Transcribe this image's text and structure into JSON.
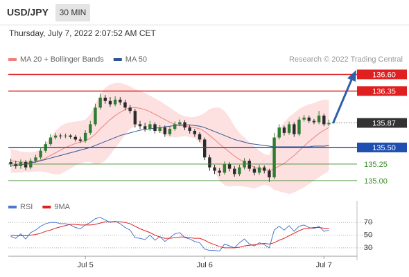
{
  "chart_data": [
    {
      "type": "candlestick",
      "title": "USD/JPY",
      "timeframe": "30 MIN",
      "subtitle": "Thursday, July 7, 2022 2:07:52 AM CET",
      "source": "Research © 2022 Trading Central",
      "categories": [
        null,
        null,
        null,
        null,
        null,
        null,
        null,
        null,
        null,
        null,
        null,
        null,
        null,
        null,
        null,
        "Jul 5",
        null,
        null,
        null,
        null,
        null,
        null,
        null,
        null,
        null,
        null,
        null,
        null,
        null,
        null,
        null,
        null,
        null,
        null,
        null,
        null,
        null,
        null,
        null,
        "Jul 6",
        null,
        null,
        null,
        null,
        null,
        null,
        null,
        null,
        null,
        null,
        null,
        null,
        null,
        null,
        null,
        null,
        null,
        null,
        null,
        null,
        null,
        null,
        null,
        "Jul 7",
        null
      ],
      "open": [
        135.28,
        135.25,
        135.22,
        135.28,
        135.2,
        135.3,
        135.35,
        135.45,
        135.55,
        135.65,
        135.68,
        135.67,
        135.68,
        135.66,
        135.62,
        135.6,
        135.72,
        135.85,
        136.1,
        136.25,
        136.2,
        136.15,
        136.22,
        136.18,
        136.1,
        136.05,
        135.85,
        135.82,
        135.78,
        135.85,
        135.75,
        135.8,
        135.7,
        135.78,
        135.85,
        135.88,
        135.8,
        135.75,
        135.7,
        135.62,
        135.35,
        135.2,
        135.15,
        135.12,
        135.25,
        135.18,
        135.1,
        135.2,
        135.3,
        135.18,
        135.12,
        135.2,
        135.15,
        135.05,
        135.65,
        135.8,
        135.72,
        135.85,
        135.7,
        135.92,
        135.95,
        135.9,
        135.88,
        135.98,
        135.85
      ],
      "high": [
        135.33,
        135.3,
        135.32,
        135.31,
        135.34,
        135.39,
        135.49,
        135.59,
        135.7,
        135.72,
        135.71,
        135.71,
        135.7,
        135.69,
        135.66,
        135.76,
        135.9,
        136.16,
        136.31,
        136.29,
        136.26,
        136.27,
        136.26,
        136.22,
        136.14,
        136.08,
        135.9,
        135.87,
        135.9,
        135.88,
        135.84,
        135.83,
        135.82,
        135.89,
        135.92,
        135.91,
        135.84,
        135.78,
        135.73,
        135.65,
        135.39,
        135.24,
        135.19,
        135.29,
        135.28,
        135.22,
        135.24,
        135.34,
        135.33,
        135.22,
        135.24,
        135.23,
        135.18,
        135.72,
        135.85,
        135.83,
        135.89,
        135.88,
        135.96,
        135.99,
        135.98,
        135.93,
        136.05,
        136.01,
        135.92
      ],
      "low": [
        135.21,
        135.18,
        135.18,
        135.16,
        135.17,
        135.27,
        135.32,
        135.42,
        135.52,
        135.62,
        135.63,
        135.64,
        135.63,
        135.59,
        135.57,
        135.57,
        135.69,
        135.82,
        136.07,
        136.16,
        136.11,
        136.12,
        136.14,
        136.06,
        136.01,
        135.8,
        135.78,
        135.74,
        135.75,
        135.71,
        135.72,
        135.66,
        135.67,
        135.75,
        135.82,
        135.76,
        135.71,
        135.66,
        135.58,
        135.31,
        135.15,
        135.1,
        135.07,
        135.09,
        135.14,
        135.06,
        135.07,
        135.17,
        135.14,
        135.08,
        135.09,
        135.11,
        134.98,
        135.02,
        135.62,
        135.68,
        135.69,
        135.66,
        135.67,
        135.89,
        135.87,
        135.85,
        135.85,
        135.82,
        135.82
      ],
      "close": [
        135.25,
        135.22,
        135.28,
        135.2,
        135.3,
        135.35,
        135.45,
        135.55,
        135.65,
        135.68,
        135.67,
        135.68,
        135.66,
        135.62,
        135.6,
        135.72,
        135.85,
        136.1,
        136.25,
        136.2,
        136.15,
        136.22,
        136.18,
        136.1,
        136.05,
        135.85,
        135.82,
        135.78,
        135.85,
        135.75,
        135.8,
        135.7,
        135.78,
        135.85,
        135.88,
        135.8,
        135.75,
        135.7,
        135.62,
        135.35,
        135.2,
        135.15,
        135.12,
        135.25,
        135.18,
        135.1,
        135.2,
        135.3,
        135.18,
        135.12,
        135.2,
        135.15,
        135.05,
        135.65,
        135.8,
        135.72,
        135.85,
        135.7,
        135.92,
        135.95,
        135.9,
        135.88,
        135.98,
        135.85,
        135.87
      ],
      "up_color": "#2e7d32",
      "down_color": "#2b2b2b",
      "series": [
        {
          "name": "MA 20 + Bollinger Bands",
          "color": "#f08080",
          "band_color": "#fde0e0",
          "values": [
            135.3,
            135.29,
            135.28,
            135.28,
            135.28,
            135.29,
            135.31,
            135.34,
            135.38,
            135.42,
            135.46,
            135.5,
            135.53,
            135.56,
            135.58,
            135.6,
            135.64,
            135.7,
            135.78,
            135.85,
            135.92,
            135.98,
            136.03,
            136.07,
            136.1,
            136.1,
            136.09,
            136.07,
            136.04,
            136.0,
            135.96,
            135.92,
            135.88,
            135.85,
            135.83,
            135.82,
            135.81,
            135.8,
            135.78,
            135.74,
            135.68,
            135.62,
            135.55,
            135.49,
            135.43,
            135.37,
            135.32,
            135.28,
            135.24,
            135.2,
            135.18,
            135.17,
            135.15,
            135.18,
            135.22,
            135.26,
            135.32,
            135.38,
            135.45,
            135.52,
            135.59,
            135.65,
            135.71,
            135.76,
            135.8
          ],
          "upper": [
            135.48,
            135.46,
            135.44,
            135.43,
            135.43,
            135.44,
            135.48,
            135.55,
            135.65,
            135.75,
            135.82,
            135.86,
            135.88,
            135.89,
            135.9,
            135.92,
            136.0,
            136.15,
            136.3,
            136.4,
            136.45,
            136.47,
            136.47,
            136.45,
            136.42,
            136.38,
            136.35,
            136.32,
            136.28,
            136.24,
            136.2,
            136.15,
            136.1,
            136.05,
            136.0,
            135.97,
            135.96,
            135.96,
            135.98,
            136.02,
            136.08,
            136.1,
            136.1,
            136.05,
            135.95,
            135.82,
            135.72,
            135.65,
            135.58,
            135.52,
            135.45,
            135.4,
            135.38,
            135.6,
            135.78,
            135.88,
            135.96,
            136.02,
            136.08,
            136.12,
            136.15,
            136.17,
            136.2,
            136.22,
            136.22
          ],
          "lower": [
            135.12,
            135.12,
            135.12,
            135.13,
            135.13,
            135.14,
            135.14,
            135.13,
            135.11,
            135.09,
            135.1,
            135.14,
            135.18,
            135.23,
            135.26,
            135.28,
            135.28,
            135.25,
            135.26,
            135.3,
            135.39,
            135.49,
            135.59,
            135.69,
            135.78,
            135.82,
            135.83,
            135.82,
            135.8,
            135.76,
            135.72,
            135.69,
            135.66,
            135.65,
            135.66,
            135.67,
            135.66,
            135.64,
            135.58,
            135.46,
            135.28,
            135.14,
            135.0,
            134.93,
            134.91,
            134.92,
            134.92,
            134.91,
            134.9,
            134.88,
            134.91,
            134.94,
            134.92,
            134.86,
            134.84,
            134.82,
            134.8,
            134.82,
            134.86,
            134.9,
            134.95,
            135.0,
            135.05,
            135.1,
            135.15
          ]
        },
        {
          "name": "MA 50",
          "color": "#2f5597",
          "values": [
            135.22,
            135.23,
            135.24,
            135.25,
            135.27,
            135.28,
            135.3,
            135.32,
            135.34,
            135.36,
            135.38,
            135.4,
            135.42,
            135.44,
            135.46,
            135.48,
            135.5,
            135.53,
            135.56,
            135.59,
            135.62,
            135.65,
            135.68,
            135.7,
            135.72,
            135.74,
            135.76,
            135.77,
            135.78,
            135.79,
            135.8,
            135.81,
            135.82,
            135.83,
            135.84,
            135.84,
            135.84,
            135.83,
            135.82,
            135.8,
            135.77,
            135.74,
            135.71,
            135.68,
            135.65,
            135.62,
            135.6,
            135.58,
            135.56,
            135.55,
            135.54,
            135.53,
            135.52,
            135.51,
            135.51,
            135.51,
            135.51,
            135.51,
            135.51,
            135.51,
            135.51,
            135.52,
            135.52,
            135.52,
            135.53
          ]
        }
      ],
      "levels": [
        {
          "value": 136.6,
          "label": "136.60",
          "color": "#e02020",
          "style": "solid",
          "box": true
        },
        {
          "value": 136.35,
          "label": "136.35",
          "color": "#e02020",
          "style": "solid",
          "box": true
        },
        {
          "value": 135.87,
          "label": "135.87",
          "color": "#333333",
          "style": "dotted",
          "box": true
        },
        {
          "value": 135.5,
          "label": "135.50",
          "color": "#1f4fb0",
          "style": "solid",
          "box": true
        },
        {
          "value": 135.25,
          "label": "135.25",
          "color": "#3a8a2a",
          "style": "solid",
          "box": false
        },
        {
          "value": 135,
          "label": "135.00",
          "color": "#3a8a2a",
          "style": "solid",
          "box": false
        }
      ],
      "ylim": [
        134.78,
        136.73
      ]
    },
    {
      "type": "line",
      "series": [
        {
          "name": "RSI",
          "color": "#4a78d0",
          "values": [
            48,
            45,
            52,
            44,
            54,
            58,
            64,
            68,
            70,
            70,
            68,
            68,
            66,
            62,
            60,
            66,
            70,
            76,
            78,
            74,
            70,
            72,
            68,
            62,
            58,
            46,
            45,
            43,
            50,
            42,
            48,
            40,
            46,
            52,
            54,
            46,
            44,
            40,
            38,
            28,
            26,
            26,
            25,
            36,
            33,
            30,
            38,
            44,
            36,
            33,
            38,
            35,
            30,
            58,
            64,
            58,
            65,
            56,
            64,
            66,
            62,
            60,
            64,
            56,
            58
          ]
        },
        {
          "name": "9MA",
          "color": "#e02020",
          "values": [
            50,
            49,
            49,
            49,
            50,
            51,
            53,
            56,
            58,
            61,
            63,
            65,
            67,
            67,
            66,
            66,
            66,
            67,
            69,
            71,
            71,
            71,
            71,
            70,
            68,
            64,
            60,
            57,
            54,
            50,
            47,
            45,
            45,
            46,
            47,
            47,
            46,
            45,
            45,
            42,
            38,
            35,
            32,
            30,
            30,
            30,
            31,
            33,
            34,
            35,
            36,
            37,
            36,
            38,
            42,
            45,
            49,
            53,
            57,
            60,
            61,
            62,
            62,
            61,
            61
          ]
        }
      ],
      "ylim": [
        19,
        104
      ],
      "yticks": [
        70,
        50,
        30
      ]
    }
  ]
}
